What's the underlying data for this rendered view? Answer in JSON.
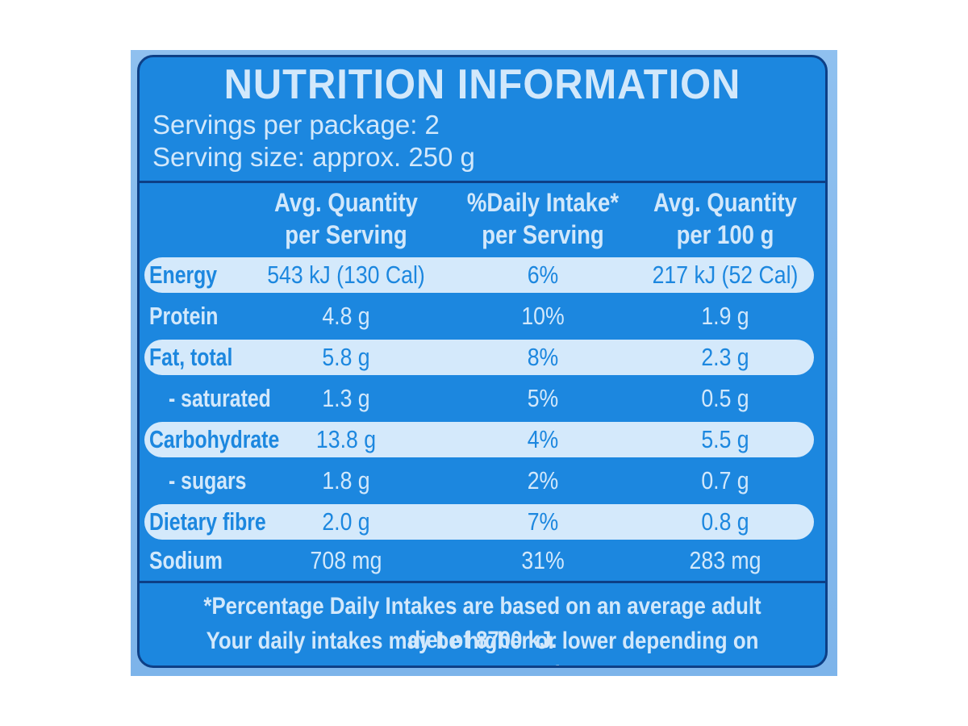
{
  "panel": {
    "title": "NUTRITION INFORMATION",
    "servings_per_package": "Servings per package: 2",
    "serving_size": "Serving size: approx. 250 g"
  },
  "table": {
    "headers": [
      {
        "line1": "Avg. Quantity",
        "line2": "per Serving"
      },
      {
        "line1": "%Daily Intake*",
        "line2": "per Serving"
      },
      {
        "line1": "Avg. Quantity",
        "line2": "per 100 g"
      }
    ],
    "rows": [
      {
        "name": "Energy",
        "per_serving": "543 kJ (130 Cal)",
        "daily_intake": "6%",
        "per_100g": "217 kJ (52 Cal)"
      },
      {
        "name": "Protein",
        "per_serving": "4.8 g",
        "daily_intake": "10%",
        "per_100g": "1.9 g"
      },
      {
        "name": "Fat, total",
        "per_serving": "5.8 g",
        "daily_intake": "8%",
        "per_100g": "2.3 g"
      },
      {
        "name": "- saturated",
        "per_serving": "1.3 g",
        "daily_intake": "5%",
        "per_100g": "0.5 g"
      },
      {
        "name": "Carbohydrate",
        "per_serving": "13.8 g",
        "daily_intake": "4%",
        "per_100g": "5.5 g"
      },
      {
        "name": "- sugars",
        "per_serving": "1.8 g",
        "daily_intake": "2%",
        "per_100g": "0.7 g"
      },
      {
        "name": "Dietary fibre",
        "per_serving": "2.0 g",
        "daily_intake": "7%",
        "per_100g": "0.8 g"
      },
      {
        "name": "Sodium",
        "per_serving": "708 mg",
        "daily_intake": "31%",
        "per_100g": "283 mg"
      }
    ]
  },
  "footnote": {
    "line1": "*Percentage Daily Intakes are based on an average adult diet of 8700 kJ.",
    "line2": "Your daily intakes may be higher or lower depending on your energy needs."
  },
  "colors": {
    "panel_blue": "#1c87df",
    "light_text": "#d2e8fb",
    "border_navy": "#0d3f86"
  }
}
